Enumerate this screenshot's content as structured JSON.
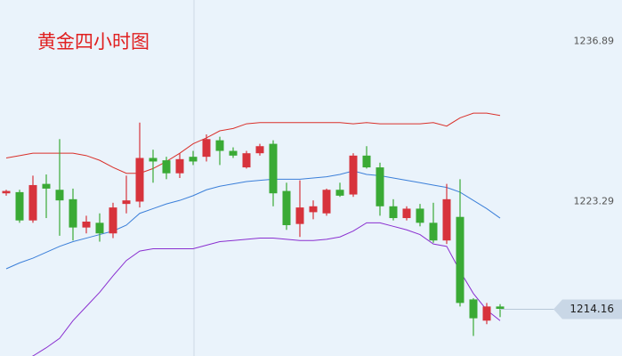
{
  "chart_data": {
    "type": "candlestick",
    "title": "黄金四小时图",
    "ylim": [
      1210.2,
      1240.4
    ],
    "yticks": [
      1223.29,
      1236.89
    ],
    "last_price": 1214.16,
    "up_color": "#d7333c",
    "down_color": "#3aaa35",
    "open": [
      1224.0,
      1224.1,
      1221.7,
      1224.8,
      1224.3,
      1223.5,
      1221.1,
      1221.5,
      1220.6,
      1223.1,
      1223.3,
      1227.0,
      1226.8,
      1225.7,
      1227.1,
      1227.1,
      1228.5,
      1227.6,
      1226.2,
      1227.4,
      1228.2,
      1224.2,
      1221.4,
      1222.4,
      1222.3,
      1224.3,
      1223.9,
      1227.2,
      1226.2,
      1222.9,
      1221.9,
      1222.7,
      1221.5,
      1220.0,
      1222.0,
      1215.0,
      1213.2,
      1214.4
    ],
    "high": [
      1224.3,
      1224.3,
      1225.5,
      1225.6,
      1228.6,
      1224.4,
      1222.1,
      1222.3,
      1223.2,
      1225.5,
      1230.0,
      1227.7,
      1227.1,
      1227.4,
      1227.6,
      1229.0,
      1228.8,
      1227.9,
      1227.6,
      1228.2,
      1228.5,
      1224.9,
      1225.1,
      1223.4,
      1224.4,
      1224.9,
      1227.4,
      1228.0,
      1226.6,
      1223.5,
      1222.9,
      1223.1,
      1223.2,
      1224.8,
      1225.2,
      1215.1,
      1214.7,
      1214.6
    ],
    "low": [
      1223.8,
      1221.5,
      1221.5,
      1221.9,
      1220.4,
      1220.0,
      1220.6,
      1219.9,
      1220.2,
      1222.3,
      1222.8,
      1224.9,
      1225.2,
      1225.3,
      1226.4,
      1226.7,
      1226.4,
      1227.0,
      1226.1,
      1227.2,
      1222.9,
      1220.9,
      1220.3,
      1221.8,
      1222.1,
      1223.7,
      1223.7,
      1226.1,
      1222.1,
      1221.7,
      1221.7,
      1221.2,
      1219.8,
      1219.7,
      1214.4,
      1211.9,
      1212.9,
      1213.5
    ],
    "close": [
      1224.2,
      1221.7,
      1224.7,
      1224.4,
      1223.4,
      1221.1,
      1221.6,
      1220.6,
      1222.8,
      1223.4,
      1227.0,
      1226.7,
      1225.7,
      1226.9,
      1226.7,
      1228.6,
      1227.6,
      1227.2,
      1227.4,
      1228.0,
      1224.0,
      1221.3,
      1222.8,
      1222.9,
      1224.3,
      1223.8,
      1227.2,
      1226.2,
      1222.9,
      1221.9,
      1222.7,
      1221.5,
      1220.0,
      1223.5,
      1214.7,
      1213.4,
      1214.4,
      1214.2
    ],
    "bands": [
      {
        "color": "#d9302a",
        "values": [
          1227.0,
          1227.2,
          1227.4,
          1227.4,
          1227.4,
          1227.4,
          1227.2,
          1226.8,
          1226.2,
          1225.7,
          1225.7,
          1226.1,
          1226.7,
          1227.4,
          1228.2,
          1228.7,
          1229.3,
          1229.5,
          1229.9,
          1230.0,
          1230.0,
          1230.0,
          1230.0,
          1230.0,
          1230.0,
          1230.0,
          1229.9,
          1230.0,
          1229.9,
          1229.9,
          1229.9,
          1229.9,
          1230.0,
          1229.7,
          1230.4,
          1230.8,
          1230.8,
          1230.6
        ]
      },
      {
        "color": "#3b7fd9",
        "values": [
          1217.6,
          1218.1,
          1218.5,
          1219.0,
          1219.5,
          1219.9,
          1220.2,
          1220.5,
          1220.8,
          1221.3,
          1222.3,
          1222.7,
          1223.1,
          1223.4,
          1223.8,
          1224.3,
          1224.6,
          1224.8,
          1225.0,
          1225.1,
          1225.2,
          1225.2,
          1225.2,
          1225.3,
          1225.4,
          1225.6,
          1225.9,
          1225.6,
          1225.5,
          1225.3,
          1225.1,
          1224.9,
          1224.7,
          1224.5,
          1224.1,
          1223.4,
          1222.7,
          1221.9
        ]
      },
      {
        "color": "#8a2fd0",
        "values": [
          1208.8,
          1209.6,
          1210.2,
          1210.9,
          1211.7,
          1213.2,
          1214.4,
          1215.6,
          1217.0,
          1218.3,
          1219.1,
          1219.3,
          1219.3,
          1219.3,
          1219.3,
          1219.6,
          1219.9,
          1220.0,
          1220.1,
          1220.2,
          1220.2,
          1220.1,
          1220.0,
          1220.0,
          1220.1,
          1220.3,
          1220.8,
          1221.5,
          1221.5,
          1221.2,
          1220.9,
          1220.5,
          1219.7,
          1219.5,
          1217.4,
          1215.5,
          1214.1,
          1213.2
        ]
      }
    ]
  }
}
